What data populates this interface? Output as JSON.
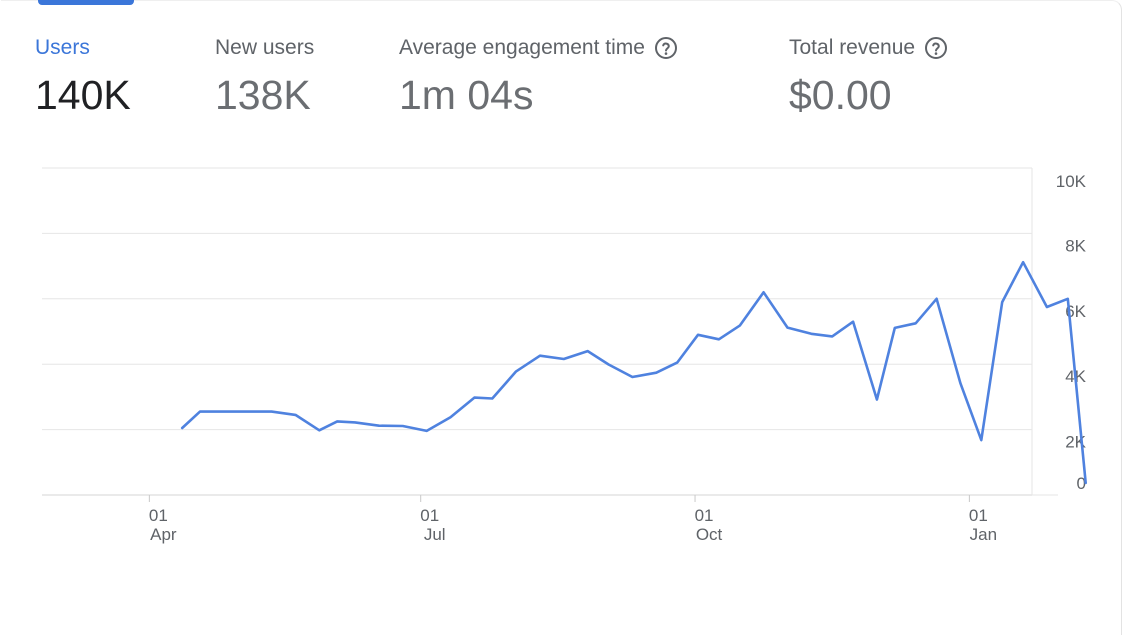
{
  "metrics": [
    {
      "label": "Users",
      "value": "140K",
      "help": false
    },
    {
      "label": "New users",
      "value": "138K",
      "help": false
    },
    {
      "label": "Average engagement time",
      "value": "1m 04s",
      "help": true
    },
    {
      "label": "Total revenue",
      "value": "$0.00",
      "help": true
    }
  ],
  "colors": {
    "accent": "#3b76d9",
    "line": "#4f82df",
    "grid": "#e6e6e6"
  },
  "chart_data": {
    "type": "line",
    "title": "",
    "xlabel": "",
    "ylabel": "",
    "ylim": [
      0,
      10000
    ],
    "xlim": [
      "2023-02-24",
      "2024-01-22"
    ],
    "y_ticks": [
      {
        "value": 0,
        "label": "0"
      },
      {
        "value": 2000,
        "label": "2K"
      },
      {
        "value": 4000,
        "label": "4K"
      },
      {
        "value": 6000,
        "label": "6K"
      },
      {
        "value": 8000,
        "label": "8K"
      },
      {
        "value": 10000,
        "label": "10K"
      }
    ],
    "x_ticks": [
      {
        "date": "2023-04-01",
        "day": "01",
        "month": "Apr"
      },
      {
        "date": "2023-07-01",
        "day": "01",
        "month": "Jul"
      },
      {
        "date": "2023-10-01",
        "day": "01",
        "month": "Oct"
      },
      {
        "date": "2024-01-01",
        "day": "01",
        "month": "Jan"
      }
    ],
    "grid": true,
    "series": [
      {
        "name": "",
        "points": [
          [
            "2023-04-12",
            2050
          ],
          [
            "2023-04-18",
            2550
          ],
          [
            "2023-04-26",
            2550
          ],
          [
            "2023-05-04",
            2550
          ],
          [
            "2023-05-12",
            2550
          ],
          [
            "2023-05-20",
            2450
          ],
          [
            "2023-05-28",
            1980
          ],
          [
            "2023-06-03",
            2250
          ],
          [
            "2023-06-09",
            2220
          ],
          [
            "2023-06-17",
            2120
          ],
          [
            "2023-06-25",
            2110
          ],
          [
            "2023-07-03",
            1960
          ],
          [
            "2023-07-11",
            2380
          ],
          [
            "2023-07-19",
            2980
          ],
          [
            "2023-07-25",
            2950
          ],
          [
            "2023-08-02",
            3780
          ],
          [
            "2023-08-10",
            4260
          ],
          [
            "2023-08-18",
            4160
          ],
          [
            "2023-08-26",
            4400
          ],
          [
            "2023-09-02",
            3990
          ],
          [
            "2023-09-10",
            3610
          ],
          [
            "2023-09-18",
            3740
          ],
          [
            "2023-09-25",
            4050
          ],
          [
            "2023-10-02",
            4900
          ],
          [
            "2023-10-09",
            4760
          ],
          [
            "2023-10-16",
            5180
          ],
          [
            "2023-10-24",
            6200
          ],
          [
            "2023-11-01",
            5120
          ],
          [
            "2023-11-09",
            4930
          ],
          [
            "2023-11-16",
            4850
          ],
          [
            "2023-11-23",
            5300
          ],
          [
            "2023-12-01",
            2920
          ],
          [
            "2023-12-07",
            5110
          ],
          [
            "2023-12-14",
            5250
          ],
          [
            "2023-12-21",
            6000
          ],
          [
            "2023-12-29",
            3420
          ],
          [
            "2024-01-05",
            1680
          ],
          [
            "2024-01-12",
            5900
          ],
          [
            "2024-01-19",
            7120
          ],
          [
            "2024-01-27",
            5750
          ],
          [
            "2024-02-03",
            6000
          ],
          [
            "2024-02-09",
            370
          ]
        ]
      }
    ]
  }
}
